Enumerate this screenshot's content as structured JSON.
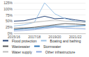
{
  "chart_data": {
    "type": "line",
    "categories": [
      "2015/16",
      null,
      "2017/18",
      null,
      "2019/20",
      null,
      "2021/22",
      null
    ],
    "series": [
      {
        "name": "Flood protection",
        "color": "#264478",
        "values": [
          50,
          52,
          60,
          70,
          60,
          62,
          55,
          50
        ]
      },
      {
        "name": "Boating and bathing",
        "color": "#9dc3e6",
        "values": [
          30,
          35,
          45,
          125,
          80,
          60,
          50,
          45
        ]
      },
      {
        "name": "Wastewater",
        "color": "#595959",
        "values": [
          20,
          22,
          25,
          30,
          35,
          40,
          38,
          35
        ]
      },
      {
        "name": "Stormwater",
        "color": "#2e75b6",
        "values": [
          15,
          18,
          20,
          25,
          30,
          28,
          30,
          32
        ]
      },
      {
        "name": "Water supply",
        "color": "#bfbfbf",
        "values": [
          40,
          42,
          45,
          50,
          55,
          50,
          48,
          45
        ]
      },
      {
        "name": "Other infrastructure",
        "color": "#8faadc",
        "values": [
          10,
          12,
          15,
          20,
          25,
          22,
          20,
          18
        ]
      }
    ],
    "ylim": [
      0,
      125
    ],
    "yticks": [
      {
        "value": 0,
        "label": "0%"
      },
      {
        "value": 25,
        "label": "25%"
      },
      {
        "value": 50,
        "label": "50%"
      },
      {
        "value": 75,
        "label": "75%"
      },
      {
        "value": 100,
        "label": "100%"
      },
      {
        "value": 125,
        "label": "125%"
      }
    ],
    "grid": true
  }
}
